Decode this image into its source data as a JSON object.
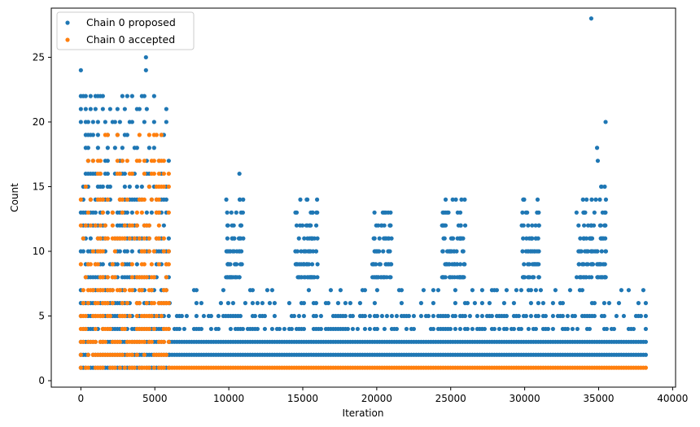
{
  "chart_data": {
    "type": "scatter",
    "xlabel": "Iteration",
    "ylabel": "Count",
    "xlim": [
      -2000,
      40200
    ],
    "ylim": [
      -0.5,
      28.8
    ],
    "xticks": [
      0,
      5000,
      10000,
      15000,
      20000,
      25000,
      30000,
      35000,
      40000
    ],
    "yticks": [
      0,
      5,
      10,
      15,
      20,
      25
    ],
    "grid": false,
    "legend_placement": "top-left",
    "series": [
      {
        "name": "Chain 0 proposed",
        "color": "#1f77b4",
        "bands": [
          {
            "x_range": [
              0,
              6000
            ],
            "y": [
              1,
              2,
              3,
              4,
              5,
              6,
              7,
              8,
              9,
              10,
              11,
              12,
              13,
              14,
              15,
              16,
              17,
              18,
              19,
              20,
              21,
              22
            ],
            "density": 0.9
          },
          {
            "x_range": [
              6000,
              38300
            ],
            "y": [
              2,
              3
            ],
            "density": 1.0
          },
          {
            "x_range": [
              6000,
              38300
            ],
            "y": [
              4,
              5
            ],
            "density": 0.55
          },
          {
            "x_range": [
              6000,
              38300
            ],
            "y": [
              6,
              7
            ],
            "density": 0.22
          }
        ],
        "clusters": [
          {
            "x_range": [
              9800,
              11000
            ],
            "y": [
              8,
              9,
              10,
              11,
              12,
              13,
              14,
              16
            ]
          },
          {
            "x_range": [
              14500,
              16000
            ],
            "y": [
              8,
              9,
              10,
              11,
              12,
              13,
              14
            ]
          },
          {
            "x_range": [
              19700,
              21000
            ],
            "y": [
              8,
              9,
              10,
              11,
              12,
              13
            ]
          },
          {
            "x_range": [
              24400,
              26000
            ],
            "y": [
              8,
              9,
              10,
              11,
              12,
              13,
              14
            ]
          },
          {
            "x_range": [
              29800,
              31000
            ],
            "y": [
              8,
              9,
              10,
              11,
              12,
              13,
              14
            ]
          },
          {
            "x_range": [
              33500,
              35500
            ],
            "y": [
              8,
              9,
              10,
              11,
              12,
              13,
              14,
              15,
              17,
              18,
              20
            ]
          }
        ],
        "points": [
          [
            0,
            24
          ],
          [
            4400,
            25
          ],
          [
            4400,
            24
          ],
          [
            34500,
            28
          ]
        ]
      },
      {
        "name": "Chain 0 accepted",
        "color": "#ff7f0e",
        "bands": [
          {
            "x_range": [
              0,
              6000
            ],
            "y": [
              1,
              2,
              3,
              4,
              5,
              6,
              7,
              8,
              9,
              10,
              11,
              12,
              13,
              14,
              15,
              16,
              17,
              19
            ],
            "density": 0.75
          },
          {
            "x_range": [
              6000,
              38300
            ],
            "y": [
              1
            ],
            "density": 1.0
          }
        ],
        "clusters": [],
        "points": []
      }
    ]
  }
}
